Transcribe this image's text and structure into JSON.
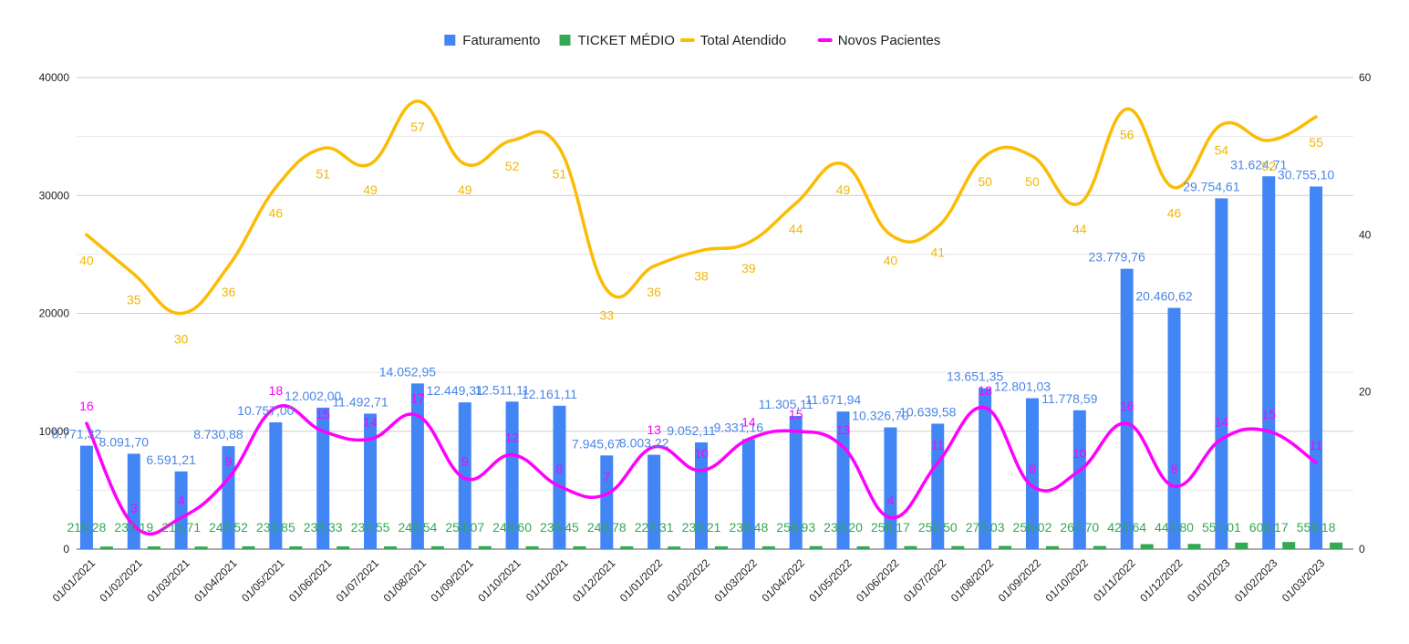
{
  "chart_data": {
    "type": "bar+line",
    "title": "",
    "categories": [
      "01/01/2021",
      "01/02/2021",
      "01/03/2021",
      "01/04/2021",
      "01/05/2021",
      "01/06/2021",
      "01/07/2021",
      "01/08/2021",
      "01/09/2021",
      "01/10/2021",
      "01/11/2021",
      "01/12/2021",
      "01/01/2022",
      "01/02/2022",
      "01/03/2022",
      "01/04/2022",
      "01/05/2022",
      "01/06/2022",
      "01/07/2022",
      "01/08/2022",
      "01/09/2022",
      "01/10/2022",
      "01/11/2022",
      "01/12/2022",
      "01/01/2023",
      "01/02/2023",
      "01/03/2023"
    ],
    "left_axis": {
      "ylim": [
        0,
        40000
      ],
      "ticks": [
        "0",
        "10000",
        "20000",
        "30000",
        "40000"
      ]
    },
    "right_axis": {
      "ylim": [
        0,
        60
      ],
      "ticks": [
        "0",
        "20",
        "40",
        "60"
      ]
    },
    "grid": true,
    "legend_position": "top-center",
    "series": [
      {
        "name": "Faturamento",
        "kind": "bar",
        "axis": "left",
        "color": "#4285f4",
        "label_color": "#4a86e8",
        "values": [
          8771.32,
          8091.7,
          6591.21,
          8730.88,
          10757.0,
          12002.0,
          11492.71,
          14052.95,
          12449.31,
          12511.11,
          12161.11,
          7945.67,
          8003.22,
          9052.11,
          9331.16,
          11305.11,
          11671.94,
          10326.7,
          10639.58,
          13651.35,
          12801.03,
          11778.59,
          23779.76,
          20460.62,
          29754.61,
          31624.71,
          30755.1
        ],
        "labels": [
          "8.771,32",
          "8.091,70",
          "6.591,21",
          "8.730,88",
          "10.757,00",
          "12.002,00",
          "11.492,71",
          "14.052,95",
          "12.449,31",
          "12.511,11",
          "12.161,11",
          "7.945,67",
          "8.003,22",
          "9.052,11",
          "9.331,16",
          "11.305,11",
          "11.671,94",
          "10.326,70",
          "10.639,58",
          "13.651,35",
          "12.801,03",
          "11.778,59",
          "23.779,76",
          "20.460,62",
          "29.754,61",
          "31.624,71",
          "30.755,10"
        ]
      },
      {
        "name": "TICKET MÉDIO",
        "kind": "bar",
        "axis": "left",
        "color": "#34a853",
        "label_color": "#34a853",
        "values": [
          219.28,
          231.19,
          219.71,
          242.52,
          233.85,
          235.33,
          234.55,
          246.54,
          254.07,
          240.6,
          238.45,
          240.78,
          222.31,
          238.21,
          239.48,
          256.93,
          238.2,
          258.17,
          259.5,
          273.03,
          256.02,
          267.7,
          424.64,
          444.8,
          551.01,
          608.17,
          559.18
        ],
        "labels": [
          "219,28",
          "231,19",
          "219,71",
          "242,52",
          "233,85",
          "235,33",
          "234,55",
          "246,54",
          "254,07",
          "240,60",
          "238,45",
          "240,78",
          "222,31",
          "238,21",
          "239,48",
          "256,93",
          "238,20",
          "258,17",
          "259,50",
          "273,03",
          "256,02",
          "267,70",
          "424,64",
          "444,80",
          "551,01",
          "608,17",
          "559,18"
        ]
      },
      {
        "name": "Total Atendido",
        "kind": "line",
        "axis": "right",
        "color": "#fbbc04",
        "label_color": "#f1b707",
        "values": [
          40,
          35,
          30,
          36,
          46,
          51,
          49,
          57,
          49,
          52,
          51,
          33,
          36,
          38,
          39,
          44,
          49,
          40,
          41,
          50,
          50,
          44,
          56,
          46,
          54,
          52,
          55
        ],
        "labels": [
          "40",
          "35",
          "30",
          "36",
          "46",
          "51",
          "49",
          "57",
          "49",
          "52",
          "51",
          "33",
          "36",
          "38",
          "39",
          "44",
          "49",
          "40",
          "41",
          "50",
          "50",
          "44",
          "56",
          "46",
          "54",
          "52",
          "55"
        ]
      },
      {
        "name": "Novos Pacientes",
        "kind": "line",
        "axis": "right",
        "color": "#ff00ff",
        "label_color": "#ff00ff",
        "values": [
          16,
          3,
          4,
          9,
          18,
          15,
          14,
          17,
          9,
          12,
          8,
          7,
          13,
          10,
          14,
          15,
          13,
          4,
          11,
          18,
          8,
          10,
          16,
          8,
          14,
          15,
          11
        ],
        "labels": [
          "16",
          "3",
          "4",
          "9",
          "18",
          "15",
          "14",
          "17",
          "9",
          "12",
          "8",
          "7",
          "13",
          "10",
          "14",
          "15",
          "13",
          "4",
          "11",
          "18",
          "8",
          "10",
          "16",
          "8",
          "14",
          "15",
          "11"
        ]
      }
    ]
  }
}
